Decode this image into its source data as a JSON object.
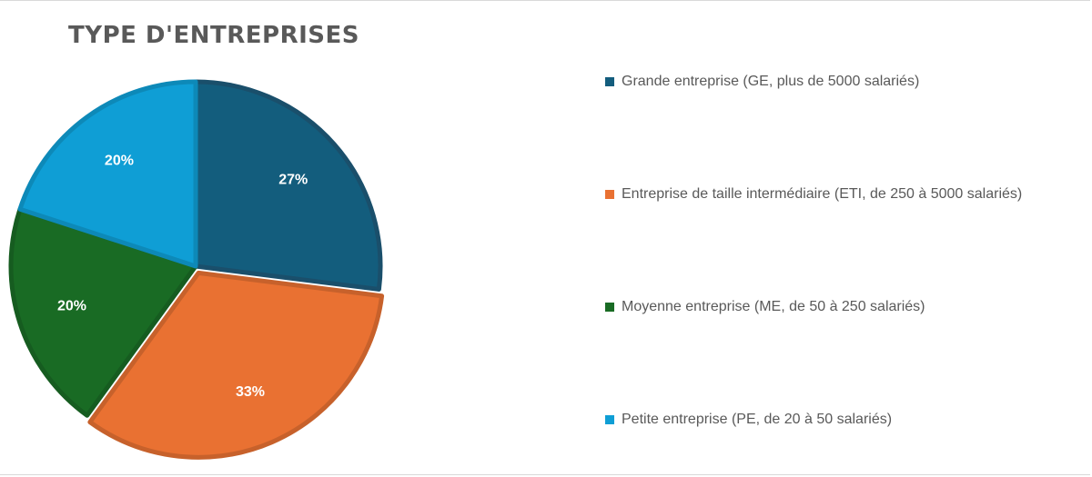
{
  "chart_data": {
    "type": "pie",
    "title": "TYPE D'ENTREPRISES",
    "legend_position": "right",
    "slices": [
      {
        "label": "Grande entreprise (GE, plus de 5000 salariés)",
        "value": 27,
        "display": "27%",
        "color": "#135d7d",
        "border": "#1a4f6b"
      },
      {
        "label": "Entreprise de taille intermédiaire (ETI, de 250 à 5000 salariés)",
        "value": 33,
        "display": "33%",
        "color": "#e97132",
        "border": "#c7612b"
      },
      {
        "label": "Moyenne entreprise (ME, de 50 à 250 salariés)",
        "value": 20,
        "display": "20%",
        "color": "#196b24",
        "border": "#165c20"
      },
      {
        "label": "Petite entreprise (PE, de 20 à 50 salariés)",
        "value": 20,
        "display": "20%",
        "color": "#0f9ed5",
        "border": "#0d89b8"
      }
    ]
  }
}
